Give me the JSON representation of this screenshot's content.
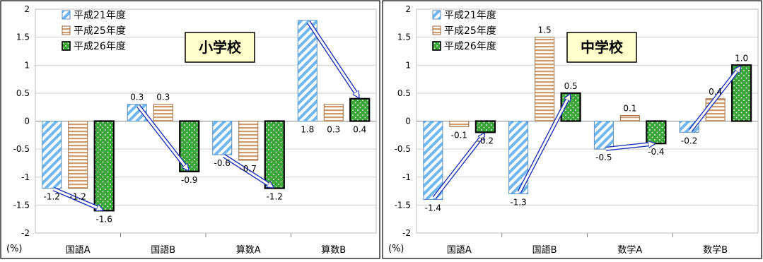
{
  "chart_data": [
    {
      "type": "bar",
      "title": "小学校",
      "ylabel": "(%)",
      "categories": [
        "国語A",
        "国語B",
        "算数A",
        "算数B"
      ],
      "ylim": [
        -2,
        2
      ],
      "yticks": [
        "2",
        "1.5",
        "1",
        "0.5",
        "0",
        "-0.5",
        "-1",
        "-1.5",
        "-2"
      ],
      "grid": true,
      "legend_position": "top-left",
      "series": [
        {
          "name": "平成21年度",
          "values": [
            -1.2,
            0.3,
            -0.6,
            1.8
          ],
          "labels": [
            "-1.2",
            "0.3",
            "-0.6",
            "1.8"
          ]
        },
        {
          "name": "平成25年度",
          "values": [
            -1.2,
            0.3,
            -0.7,
            0.3
          ],
          "labels": [
            "-1.2",
            "0.3",
            "-0.7",
            "0.3"
          ]
        },
        {
          "name": "平成26年度",
          "values": [
            -1.6,
            -0.9,
            -1.2,
            0.4
          ],
          "labels": [
            "-1.6",
            "-0.9",
            "-1.2",
            "0.4"
          ]
        }
      ],
      "arrows": [
        {
          "category": 0,
          "from": "平成21年度",
          "to": "平成26年度"
        },
        {
          "category": 1,
          "from": "平成21年度",
          "to": "平成26年度"
        },
        {
          "category": 2,
          "from": "平成21年度",
          "to": "平成26年度"
        },
        {
          "category": 3,
          "from": "平成21年度",
          "to": "平成26年度"
        }
      ]
    },
    {
      "type": "bar",
      "title": "中学校",
      "ylabel": "(%)",
      "categories": [
        "国語A",
        "国語B",
        "数学A",
        "数学B"
      ],
      "ylim": [
        -2,
        2
      ],
      "yticks": [
        "2",
        "1.5",
        "1",
        "0.5",
        "0",
        "-0.5",
        "-1",
        "-1.5",
        "-2"
      ],
      "grid": true,
      "legend_position": "top-left",
      "series": [
        {
          "name": "平成21年度",
          "values": [
            -1.4,
            -1.3,
            -0.5,
            -0.2
          ],
          "labels": [
            "-1.4",
            "-1.3",
            "-0.5",
            "-0.2"
          ]
        },
        {
          "name": "平成25年度",
          "values": [
            -0.1,
            1.5,
            0.1,
            0.4
          ],
          "labels": [
            "-0.1",
            "1.5",
            "0.1",
            "0.4"
          ]
        },
        {
          "name": "平成26年度",
          "values": [
            -0.2,
            0.5,
            -0.4,
            1.0
          ],
          "labels": [
            "-0.2",
            "0.5",
            "-0.4",
            "1.0"
          ]
        }
      ],
      "arrows": [
        {
          "category": 0,
          "from": "平成21年度",
          "to": "平成26年度"
        },
        {
          "category": 1,
          "from": "平成21年度",
          "to": "平成26年度"
        },
        {
          "category": 2,
          "from": "平成21年度",
          "to": "平成26年度"
        },
        {
          "category": 3,
          "from": "平成21年度",
          "to": "平成26年度"
        }
      ]
    }
  ],
  "colors": {
    "series1_fill": "#6fb7f0",
    "series2_stripe": "#d09a6a",
    "series3_fill": "#3aa63a",
    "title_box": "#ffffcc",
    "arrow_stroke": "#2233bb",
    "grid": "#cfcfcf"
  }
}
